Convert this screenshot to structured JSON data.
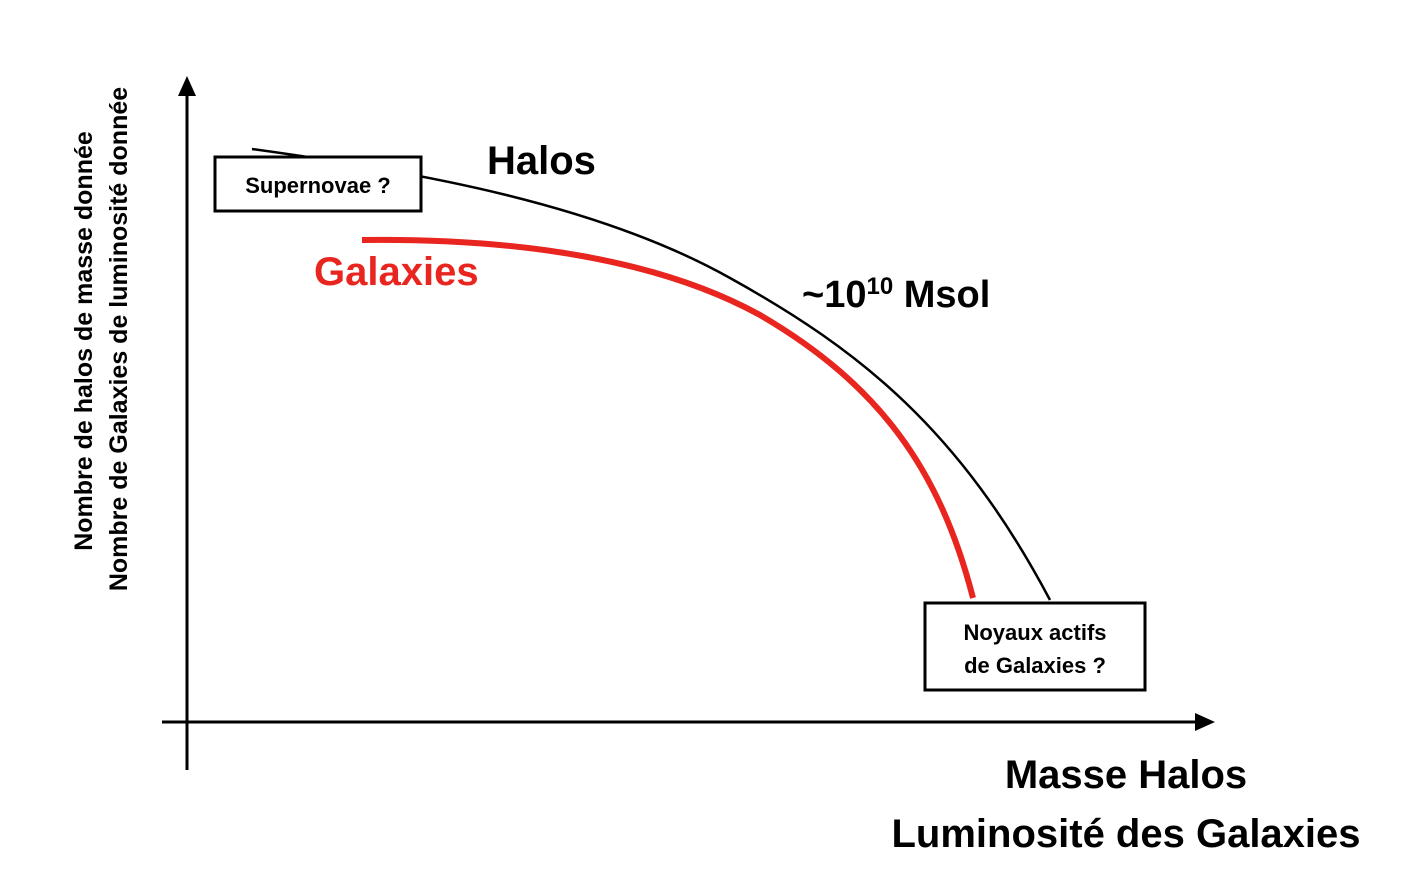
{
  "y_axis_label": {
    "line1": "Nombre de halos de masse donnée",
    "line2": "Nombre de Galaxies de luminosité donnée"
  },
  "x_axis_label": {
    "line1": "Masse Halos",
    "line2": "Luminosité des Galaxies"
  },
  "curves": {
    "halos": {
      "label": "Halos",
      "color": "#000000"
    },
    "galaxies": {
      "label": "Galaxies",
      "color": "#e8251f"
    }
  },
  "annotations": {
    "turnover": {
      "prefix": "~10",
      "exponent": "10",
      "suffix": " Msol"
    },
    "low_end_box": {
      "text": "Supernovae ?"
    },
    "high_end_box": {
      "line1": "Noyaux actifs",
      "line2": "de Galaxies ?"
    }
  }
}
